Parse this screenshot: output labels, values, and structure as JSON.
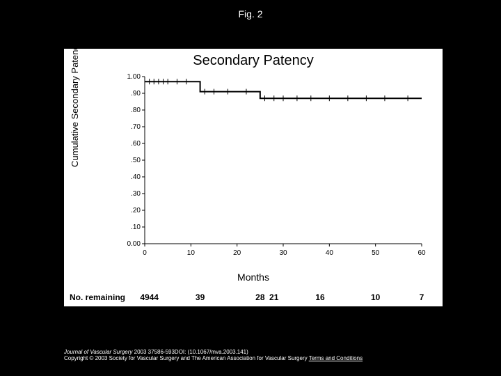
{
  "figure_label": "Fig. 2",
  "chart": {
    "type": "line",
    "title": "Secondary Patency",
    "ylabel": "Cumulative Secondary Patency",
    "xlabel": "Months",
    "xlim": [
      0,
      60
    ],
    "ylim": [
      0,
      1.0
    ],
    "xticks": [
      0,
      10,
      20,
      30,
      40,
      50,
      60
    ],
    "yticks": [
      0.0,
      0.1,
      0.2,
      0.3,
      0.4,
      0.5,
      0.6,
      0.7,
      0.8,
      0.9,
      1.0
    ],
    "ytick_labels": [
      "0.00",
      ".10",
      ".20",
      ".30",
      ".40",
      ".50",
      ".60",
      ".70",
      ".80",
      ".90",
      "1.00"
    ],
    "line_color": "#000000",
    "line_width": 2,
    "censor_tick_height": 4,
    "background_color": "#ffffff",
    "axis_color": "#000000",
    "label_fontsize": 13,
    "title_fontsize": 20,
    "tick_fontsize": 10,
    "step_points": [
      {
        "x": 0,
        "y": 0.97
      },
      {
        "x": 12,
        "y": 0.97
      },
      {
        "x": 12,
        "y": 0.91
      },
      {
        "x": 25,
        "y": 0.91
      },
      {
        "x": 25,
        "y": 0.87
      },
      {
        "x": 60,
        "y": 0.87
      }
    ],
    "censor_marks_x": [
      1,
      2,
      3,
      4,
      5,
      7,
      9,
      13,
      15,
      18,
      22,
      26,
      28,
      30,
      33,
      36,
      40,
      44,
      48,
      52,
      57
    ]
  },
  "no_remaining": {
    "label": "No. remaining",
    "entries": [
      {
        "x": 0,
        "n": "49"
      },
      {
        "x": 2,
        "n": "44"
      },
      {
        "x": 12,
        "n": "39"
      },
      {
        "x": 25,
        "n": "28"
      },
      {
        "x": 28,
        "n": "21"
      },
      {
        "x": 38,
        "n": "16"
      },
      {
        "x": 50,
        "n": "10"
      },
      {
        "x": 60,
        "n": "7"
      }
    ]
  },
  "citation": {
    "journal": "Journal of Vascular Surgery",
    "ref": "2003 37586-593DOI: (10.1067/mva.2003.141)",
    "copyright": "Copyright © 2003 Society for Vascular Surgery and The American Association for Vascular Surgery",
    "terms": "Terms and Conditions"
  },
  "colors": {
    "slide_bg": "#000000",
    "panel_bg": "#ffffff",
    "text_on_dark": "#ffffff",
    "text_on_light": "#000000"
  }
}
